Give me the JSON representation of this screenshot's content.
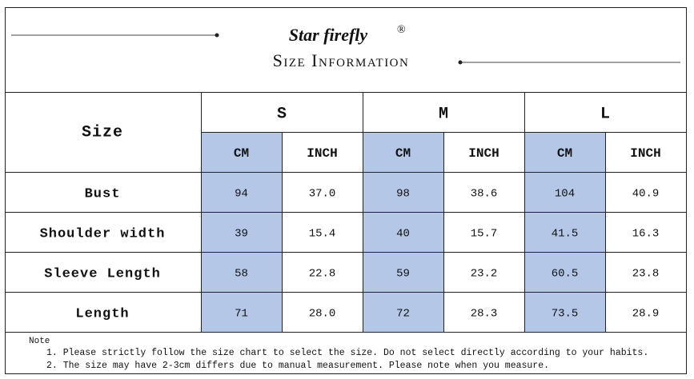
{
  "header": {
    "brand": "Star firefly",
    "trademark": "®",
    "title": "Size Information"
  },
  "table": {
    "corner": "Size",
    "sizes": [
      "S",
      "M",
      "L"
    ],
    "units": [
      "CM",
      "INCH"
    ],
    "rows": [
      {
        "label": "Bust",
        "cells": [
          "94",
          "37.0",
          "98",
          "38.6",
          "104",
          "40.9"
        ]
      },
      {
        "label": "Shoulder width",
        "cells": [
          "39",
          "15.4",
          "40",
          "15.7",
          "41.5",
          "16.3"
        ]
      },
      {
        "label": "Sleeve Length",
        "cells": [
          "58",
          "22.8",
          "59",
          "23.2",
          "60.5",
          "23.8"
        ]
      },
      {
        "label": "Length",
        "cells": [
          "71",
          "28.0",
          "72",
          "28.3",
          "73.5",
          "28.9"
        ]
      }
    ]
  },
  "note": {
    "title": "Note",
    "items": [
      "1. Please strictly follow the size chart to select the size. Do not select directly according to your habits.",
      "2. The size may have 2-3cm differs due to manual measurement. Please note when you measure."
    ]
  }
}
